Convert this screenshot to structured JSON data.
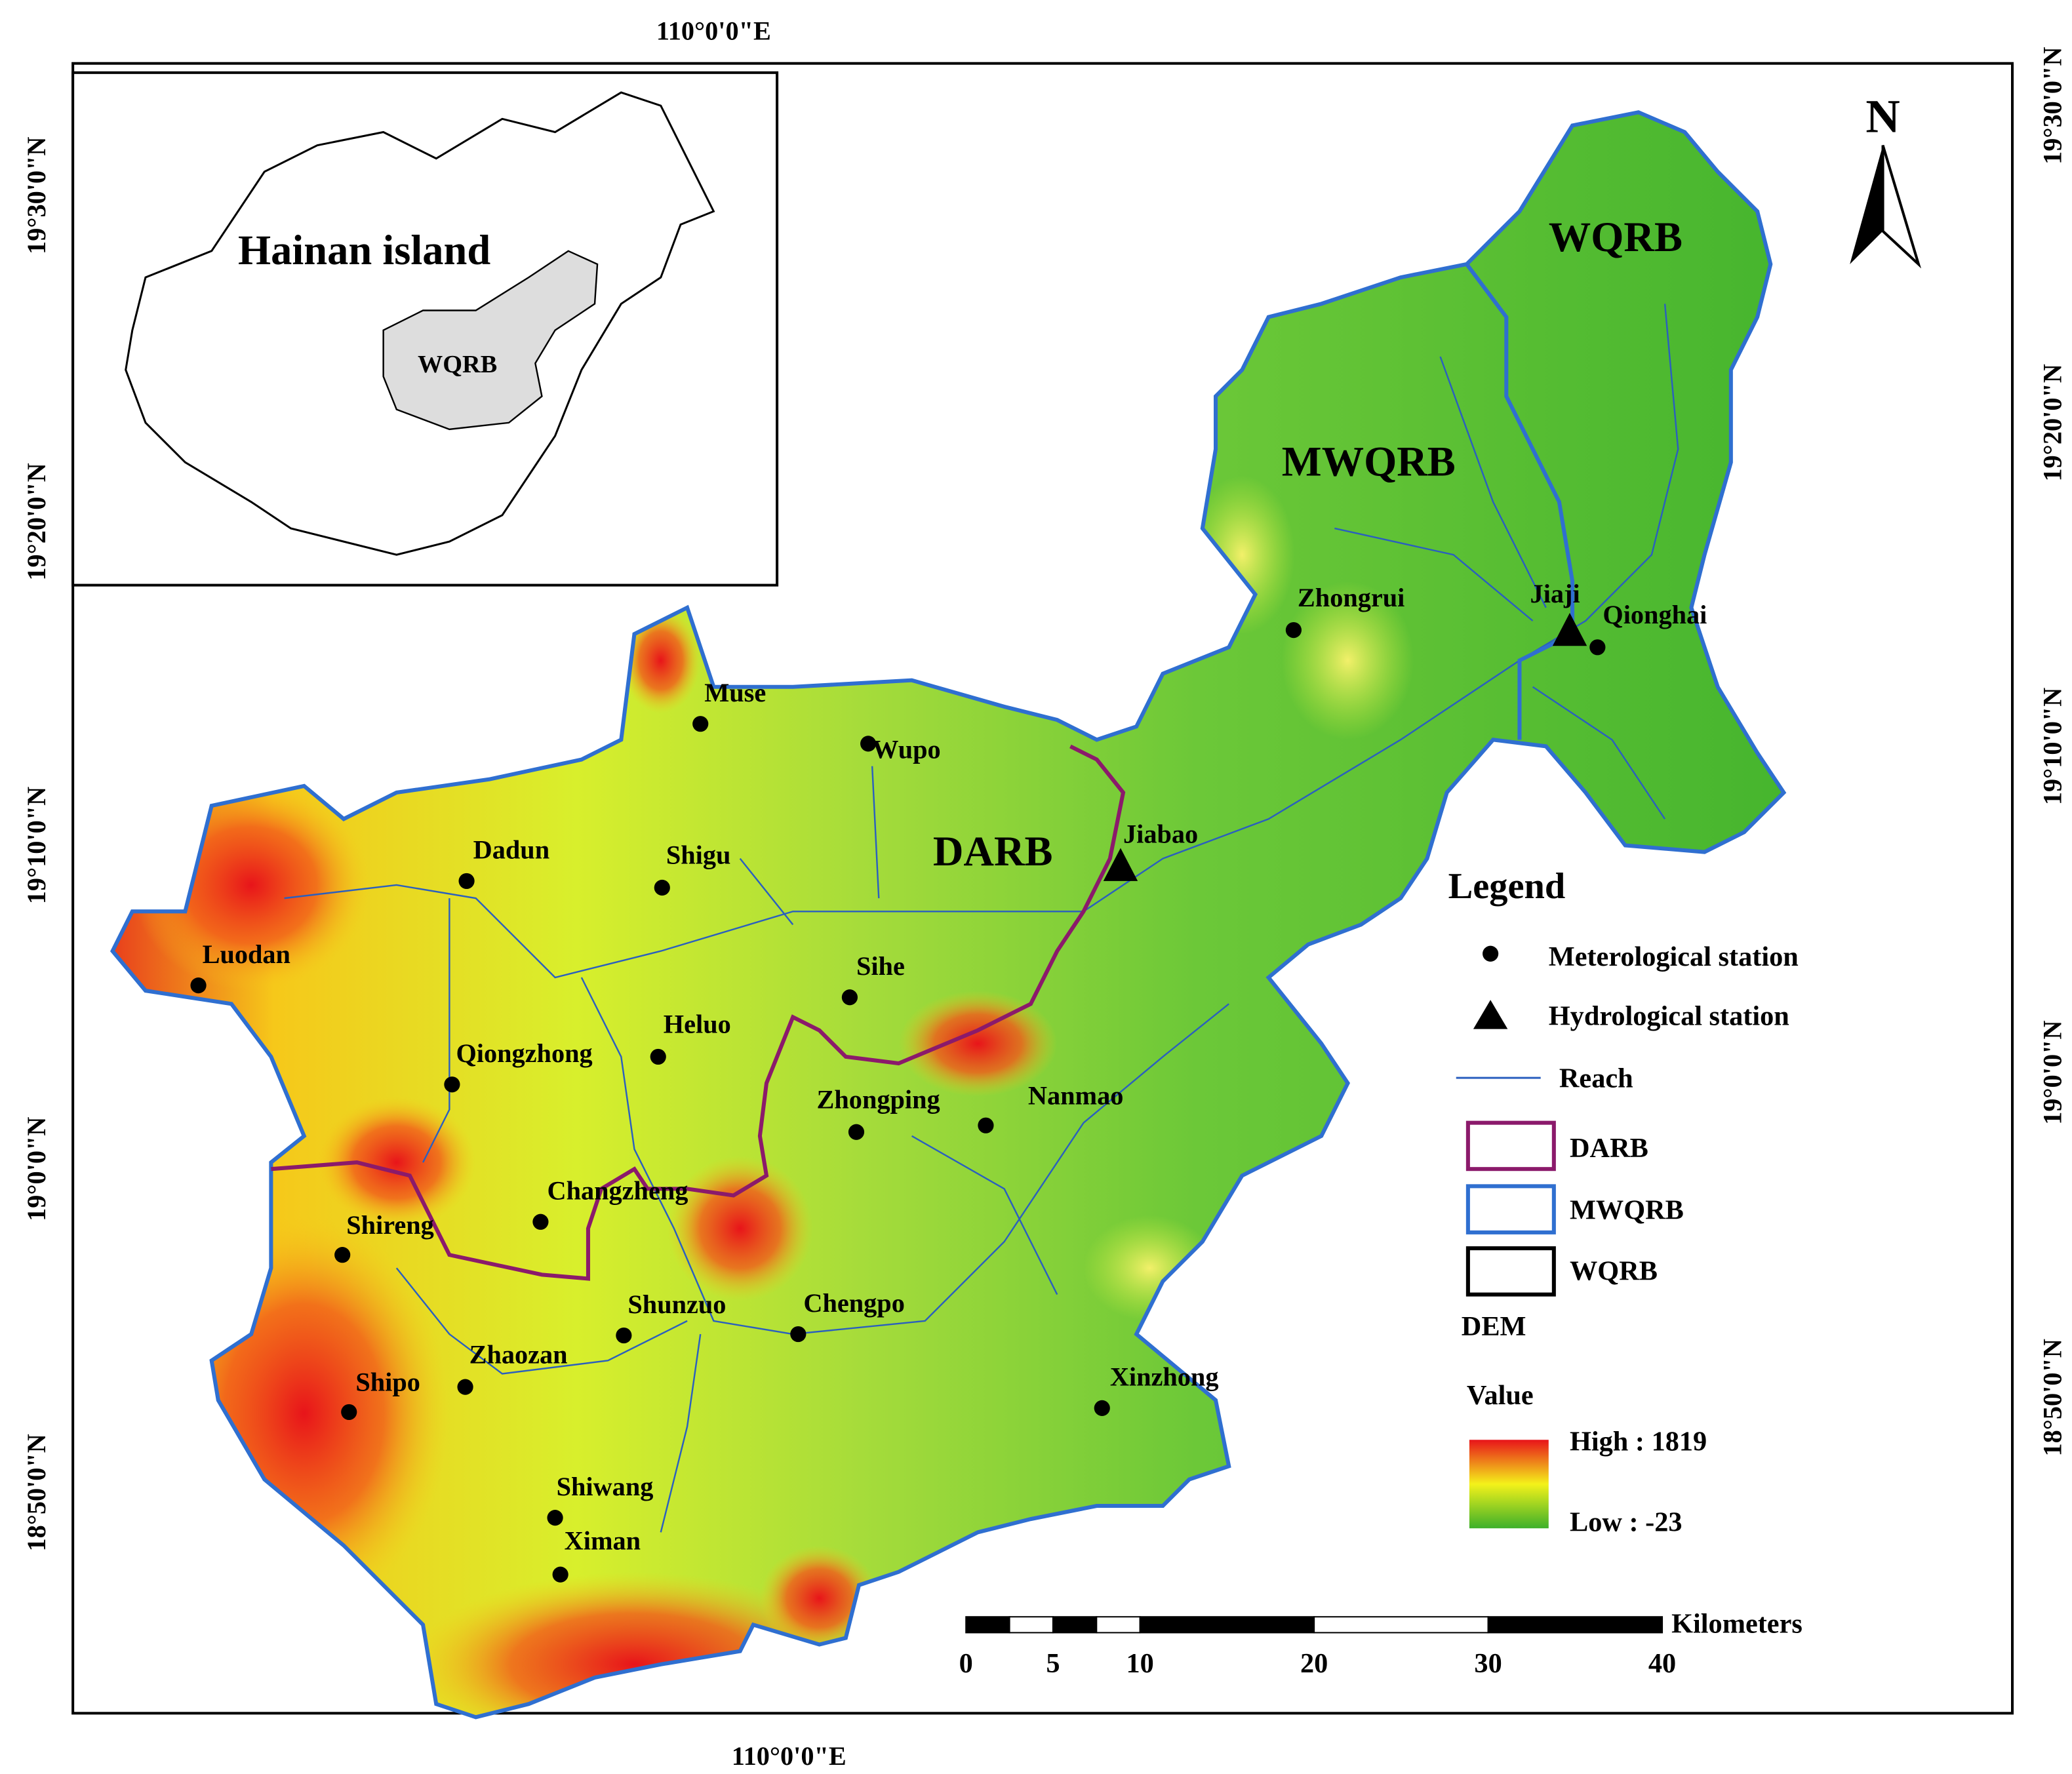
{
  "inset": {
    "title": "Hainan island",
    "basin": "WQRB"
  },
  "map": {
    "north": "N",
    "basins": [
      "WQRB",
      "MWQRB",
      "DARB"
    ],
    "meteorological_stations": [
      "Muse",
      "Wupo",
      "Dadun",
      "Shigu",
      "Luodan",
      "Sihe",
      "Heluo",
      "Qiongzhong",
      "Zhongping",
      "Nanmao",
      "Changzheng",
      "Shireng",
      "Shunzuo",
      "Chengpo",
      "Zhaozan",
      "Shipo",
      "Xinzhong",
      "Shiwang",
      "Ximan",
      "Zhongrui",
      "Qionghai"
    ],
    "hydrological_stations": [
      "Jiaji",
      "Jiabao"
    ]
  },
  "coordinates": {
    "top": "110°0'0\"E",
    "bottom": "110°0'0\"E",
    "left": [
      "19°30'0\"N",
      "19°20'0\"N",
      "19°10'0\"N",
      "19°0'0\"N",
      "18°50'0\"N"
    ],
    "right": [
      "19°30'0\"N",
      "19°20'0\"N",
      "19°10'0\"N",
      "19°0'0\"N",
      "18°50'0\"N"
    ]
  },
  "legend": {
    "title": "Legend",
    "items": [
      "Meterological station",
      "Hydrological station",
      "Reach",
      "DARB",
      "MWQRB",
      "WQRB"
    ],
    "dem_title": "DEM",
    "value_title": "Value",
    "high": "High : 1819",
    "low": "Low : -23"
  },
  "scale_bar": {
    "unit": "Kilometers",
    "ticks": [
      0,
      5,
      10,
      20,
      30,
      40
    ]
  }
}
